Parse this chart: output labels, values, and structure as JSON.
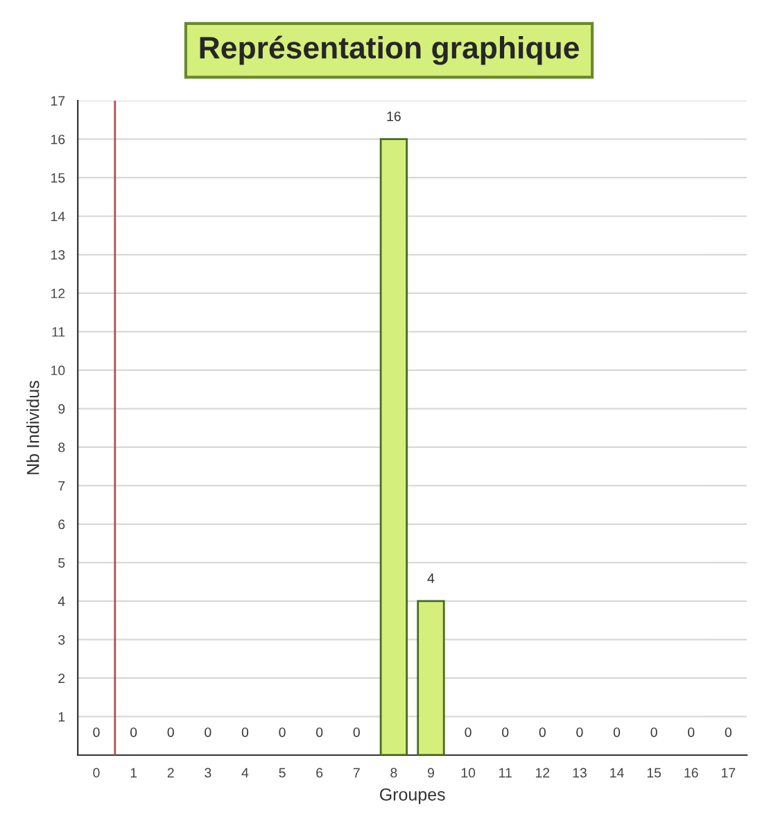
{
  "chart_data": {
    "type": "bar",
    "title": "Représentation graphique",
    "xlabel": "Groupes",
    "ylabel": "Nb Individus",
    "x": [
      0,
      1,
      2,
      3,
      4,
      5,
      6,
      7,
      8,
      9,
      10,
      11,
      12,
      13,
      14,
      15,
      16,
      17
    ],
    "values": [
      0,
      0,
      0,
      0,
      0,
      0,
      0,
      0,
      16,
      4,
      0,
      0,
      0,
      0,
      0,
      0,
      0,
      0
    ],
    "color": "#d4ef7c",
    "xlim": [
      -0.5,
      17.5
    ],
    "xticks": [
      0,
      1,
      2,
      3,
      4,
      5,
      6,
      7,
      8,
      9,
      10,
      11,
      12,
      13,
      14,
      15,
      16,
      17
    ],
    "ylim": [
      0,
      17
    ],
    "yticks": [
      1,
      2,
      3,
      4,
      5,
      6,
      7,
      8,
      9,
      10,
      11,
      12,
      13,
      14,
      15,
      16,
      17
    ],
    "ref_lines": [
      {
        "axis": "x",
        "value": 0.5,
        "color": "#b05050"
      }
    ],
    "data_labels": true,
    "grid": "y",
    "legend": false
  }
}
